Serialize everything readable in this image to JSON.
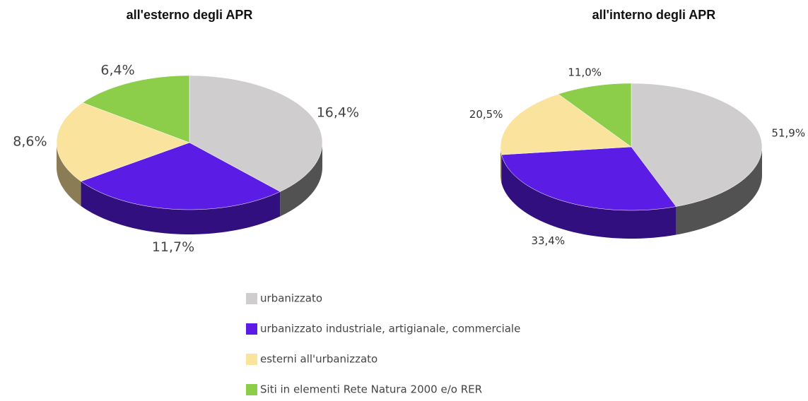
{
  "chart_data": [
    {
      "type": "pie",
      "title": "all'esterno degli APR",
      "categories": [
        "urbanizzato",
        "urbanizzato industriale, artigianale, commerciale",
        "esterni all'urbanizzato",
        "Siti in elementi Rete Natura 2000 e/o RER"
      ],
      "values": [
        16.4,
        11.7,
        8.6,
        6.4
      ],
      "value_labels": [
        "16,4%",
        "11,7%",
        "8,6%",
        "6,4%"
      ],
      "colors": [
        "#cfcdcd",
        "#5b1ce6",
        "#fae39c",
        "#8ccd4a"
      ]
    },
    {
      "type": "pie",
      "title": "all'interno degli APR",
      "values": [
        51.9,
        33.4,
        20.5,
        11.0
      ],
      "value_labels": [
        "51,9%",
        "33,4%",
        "20,5%",
        "11,0%"
      ],
      "colors": [
        "#cfcdcd",
        "#5b1ce6",
        "#fae39c",
        "#8ccd4a"
      ]
    }
  ]
}
